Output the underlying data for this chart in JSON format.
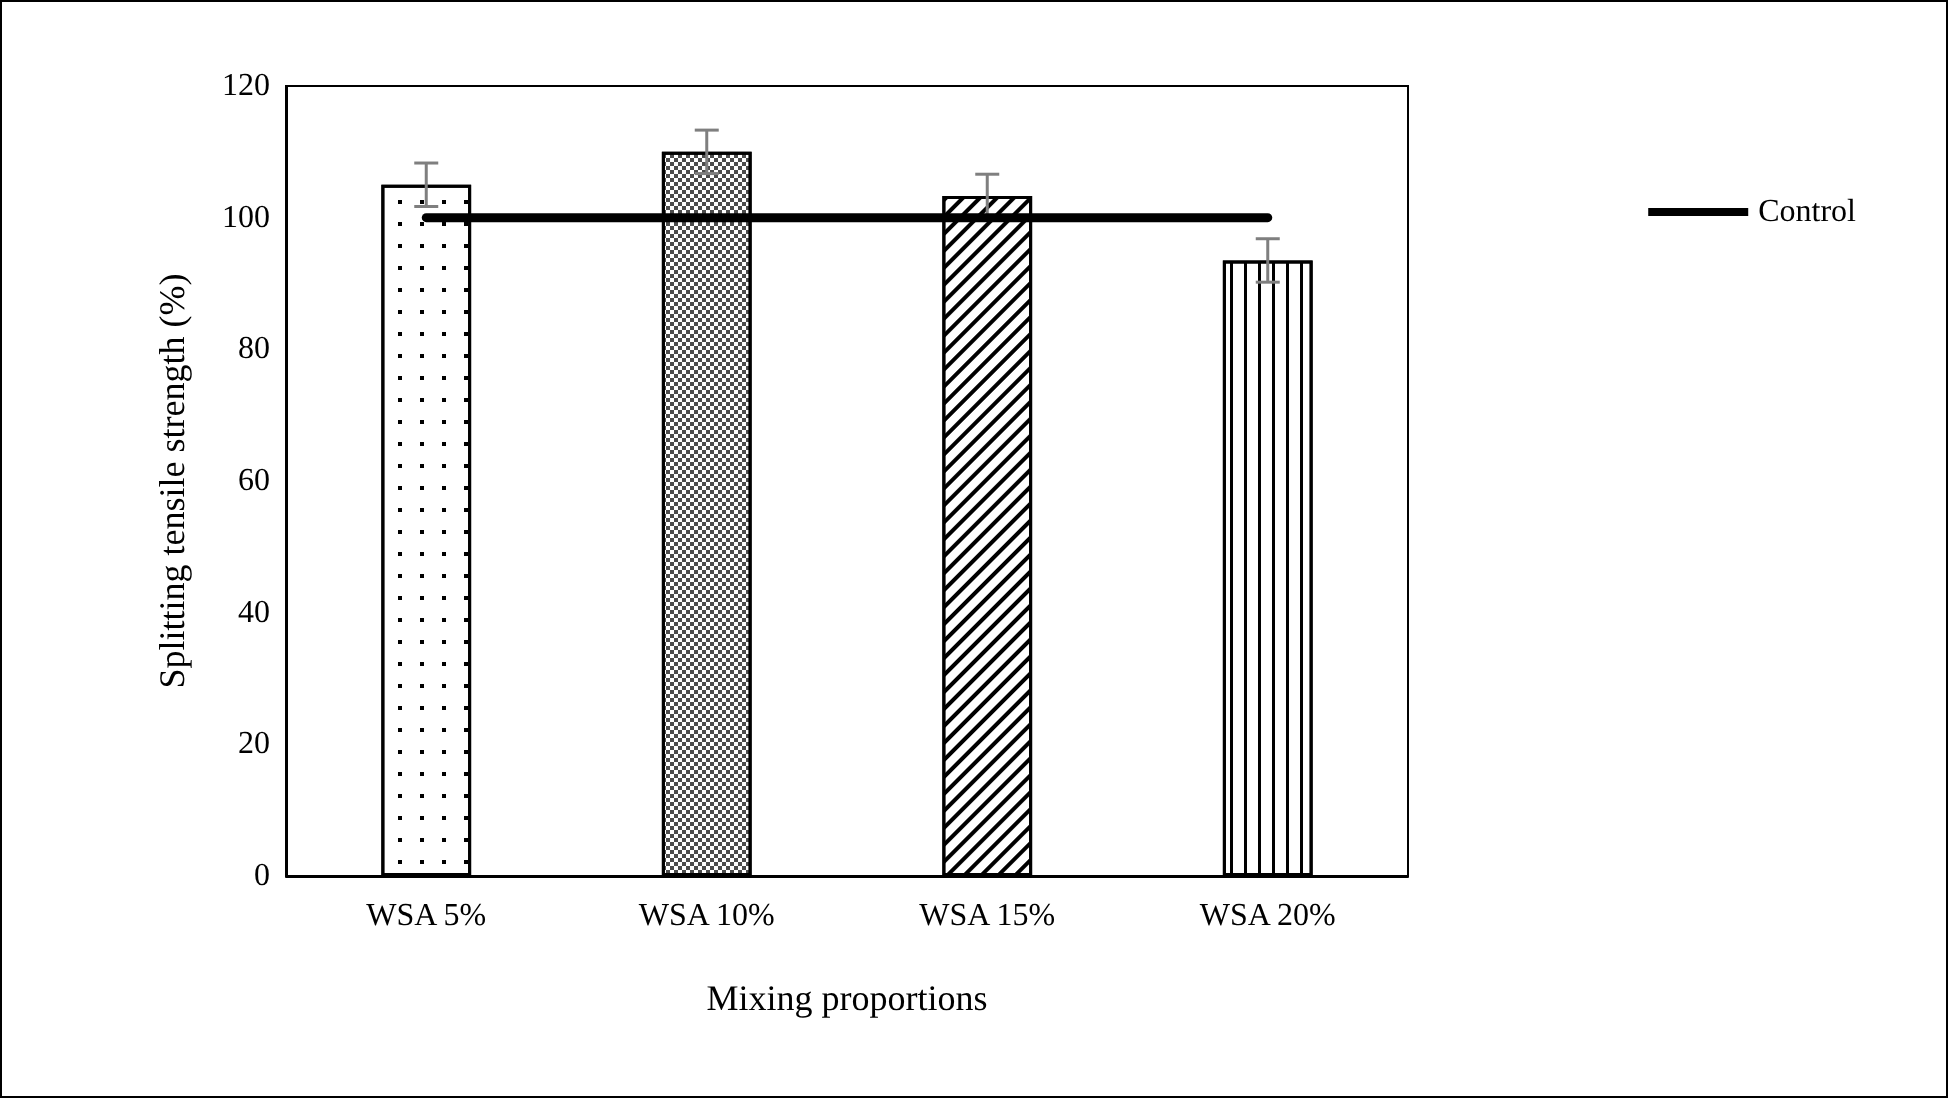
{
  "chart_data": {
    "type": "bar",
    "xlabel": "Mixing proportions",
    "ylabel": "Splitting tensile strength (%)",
    "categories": [
      "WSA 5%",
      "WSA 10%",
      "WSA 15%",
      "WSA 20%"
    ],
    "series": [
      {
        "color": "#ffffff",
        "values": [
          105,
          110,
          103.3,
          93.5
        ],
        "errors": [
          3.3,
          3.3,
          3.3,
          3.3
        ]
      },
      {
        "type": "line",
        "name": "Control",
        "color": "#000000",
        "values": [
          100,
          100,
          100,
          100
        ]
      }
    ],
    "ylim": [
      0,
      120
    ],
    "yticks": [
      0,
      20,
      40,
      60,
      80,
      100,
      120
    ],
    "grid": false,
    "legend": "right",
    "marker": "none"
  }
}
